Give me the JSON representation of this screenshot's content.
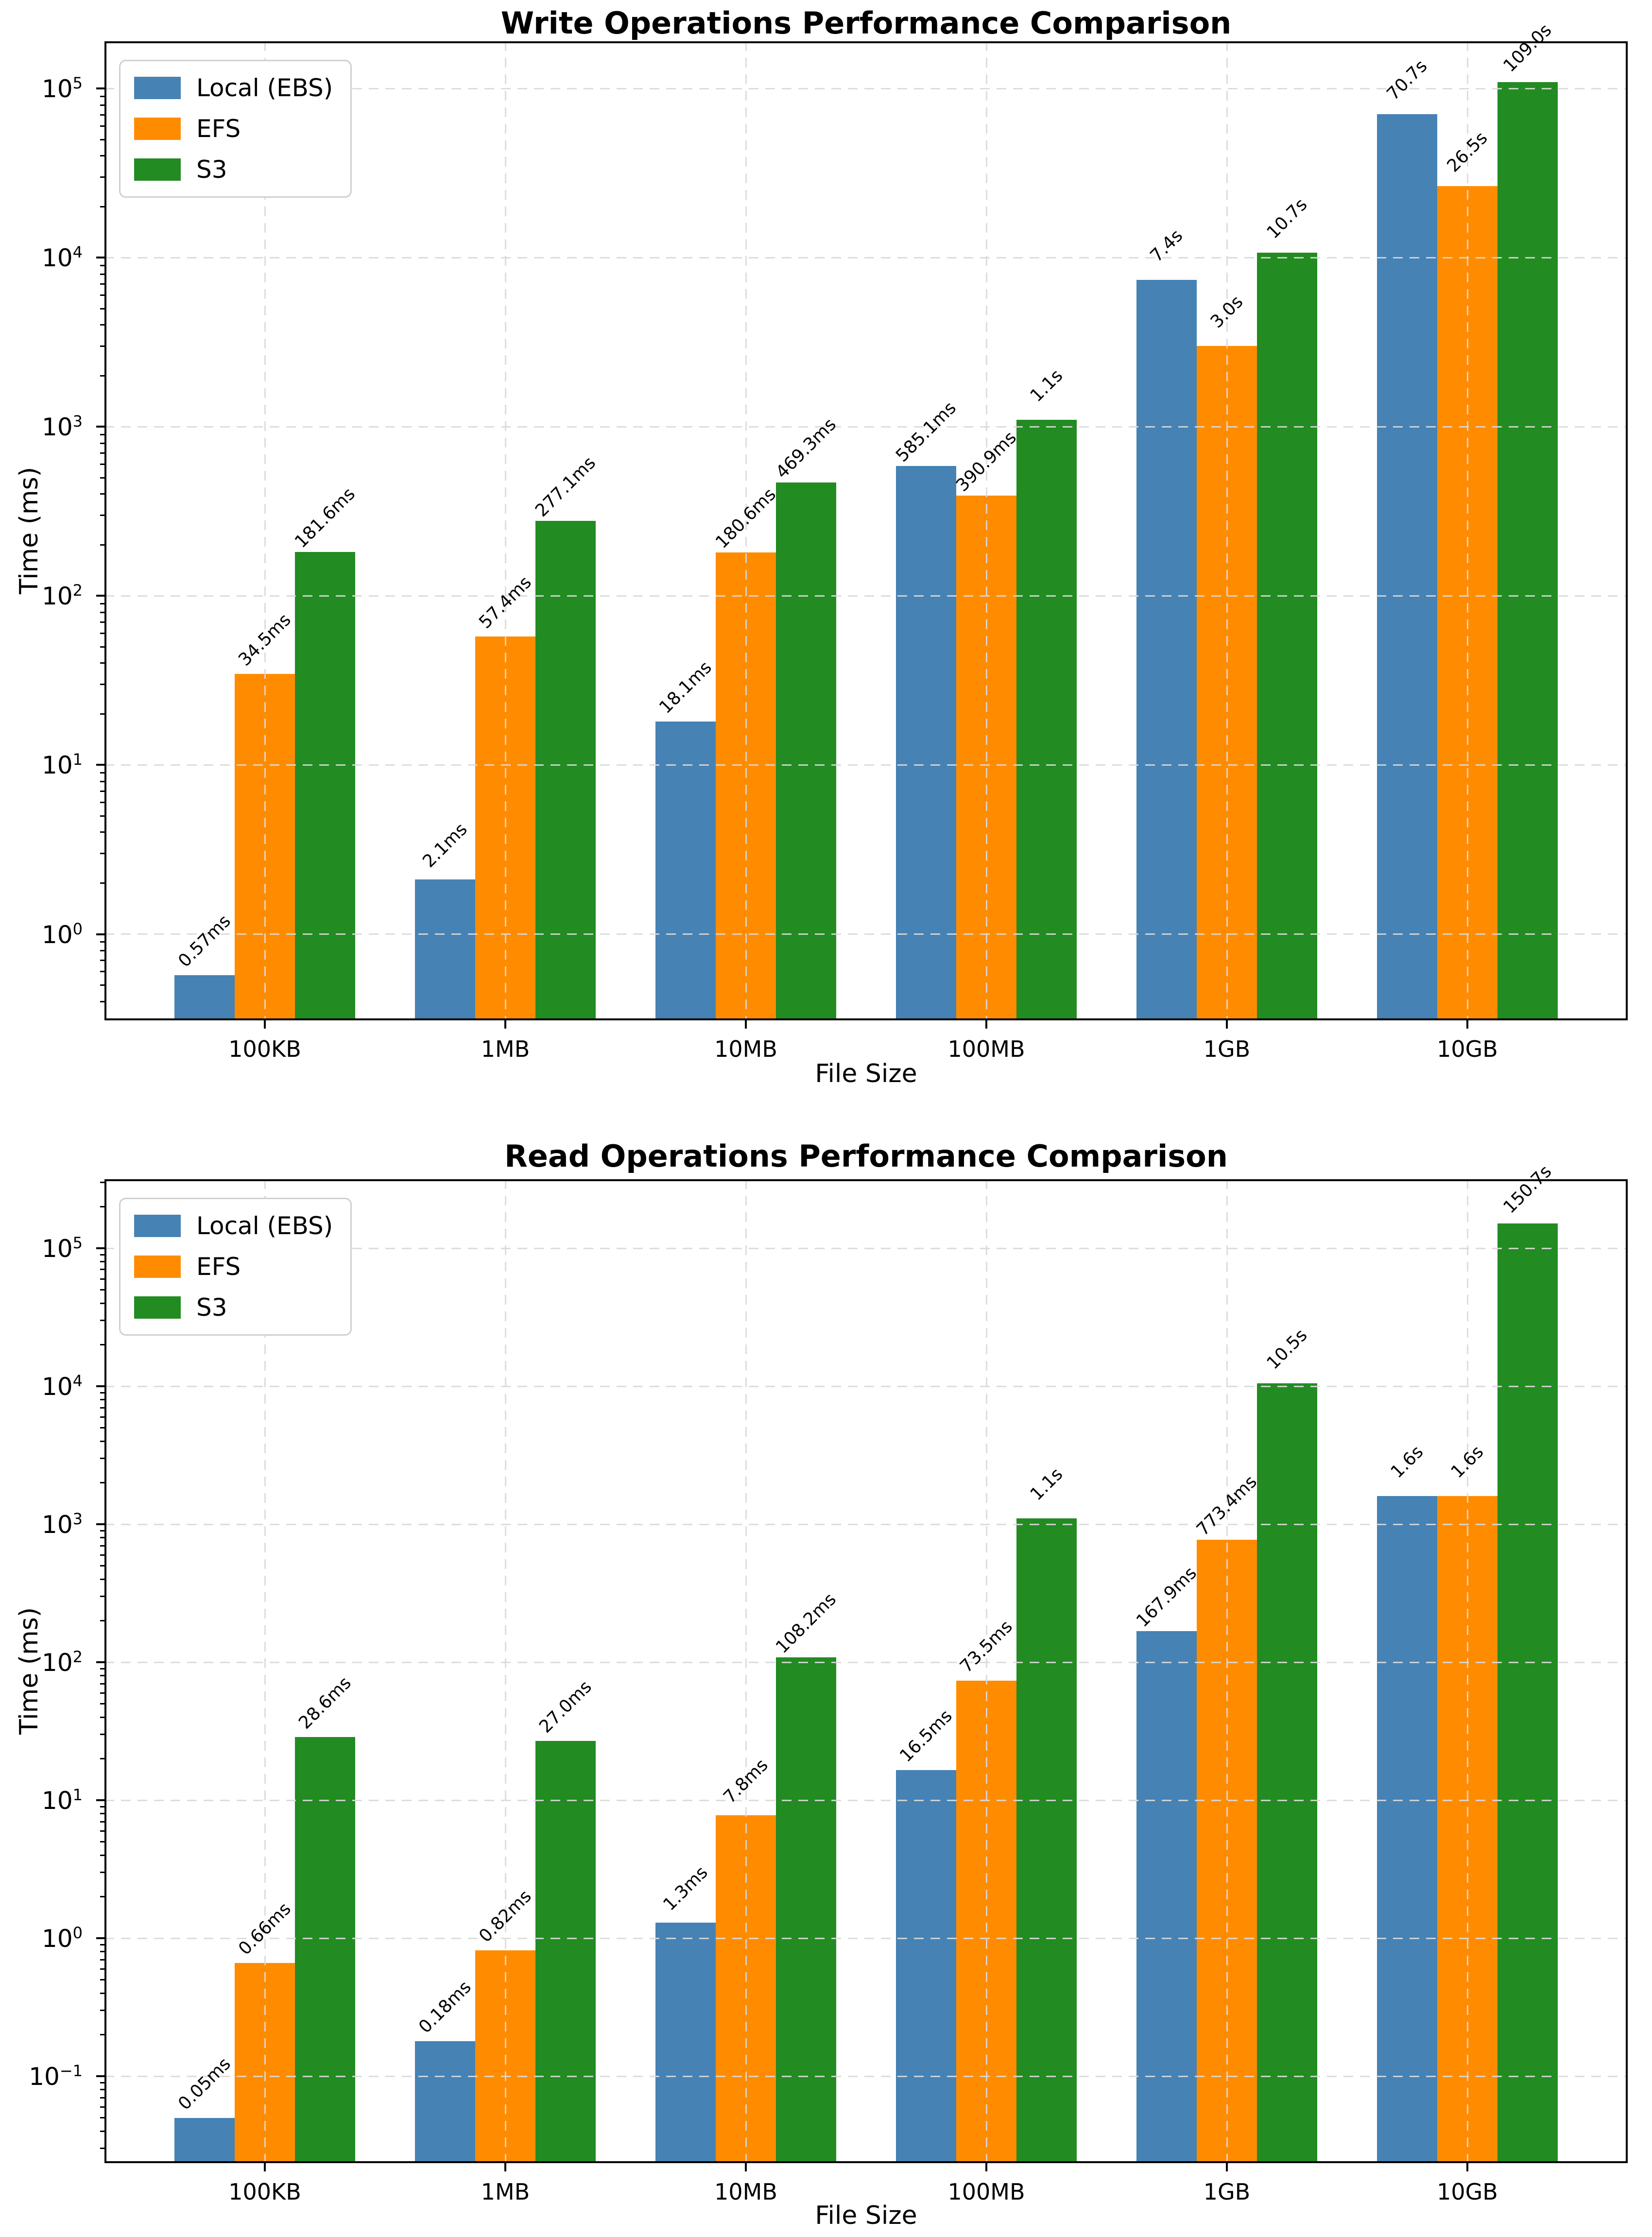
{
  "page": {
    "background": "#ffffff"
  },
  "colors": {
    "local_ebs": "#4682B4",
    "efs": "#FF8C00",
    "s3": "#228B22",
    "grid": "#d9d9d9",
    "axis": "#000000"
  },
  "chart_data": [
    {
      "type": "bar",
      "title": "Write Operations Performance Comparison",
      "xlabel": "File Size",
      "ylabel": "Time (ms)",
      "yscale": "log",
      "grid": true,
      "legend_position": "upper left",
      "categories": [
        "100KB",
        "1MB",
        "10MB",
        "100MB",
        "1GB",
        "10GB"
      ],
      "series": [
        {
          "name": "Local (EBS)",
          "color": "#4682B4",
          "values_ms": [
            0.57,
            2.1,
            18.1,
            585.1,
            7400,
            70700
          ],
          "labels": [
            "0.57ms",
            "2.1ms",
            "18.1ms",
            "585.1ms",
            "7.4s",
            "70.7s"
          ]
        },
        {
          "name": "EFS",
          "color": "#FF8C00",
          "values_ms": [
            34.5,
            57.4,
            180.6,
            390.9,
            3000,
            26500
          ],
          "labels": [
            "34.5ms",
            "57.4ms",
            "180.6ms",
            "390.9ms",
            "3.0s",
            "26.5s"
          ]
        },
        {
          "name": "S3",
          "color": "#228B22",
          "values_ms": [
            181.6,
            277.1,
            469.3,
            1100,
            10700,
            109000
          ],
          "labels": [
            "181.6ms",
            "277.1ms",
            "469.3ms",
            "1.1s",
            "10.7s",
            "109.0s"
          ]
        }
      ],
      "ytick_exponents": [
        0,
        1,
        2,
        3,
        4,
        5
      ],
      "ylog_range": [
        -0.51,
        5.28
      ]
    },
    {
      "type": "bar",
      "title": "Read Operations Performance Comparison",
      "xlabel": "File Size",
      "ylabel": "Time (ms)",
      "yscale": "log",
      "grid": true,
      "legend_position": "upper left",
      "categories": [
        "100KB",
        "1MB",
        "10MB",
        "100MB",
        "1GB",
        "10GB"
      ],
      "series": [
        {
          "name": "Local (EBS)",
          "color": "#4682B4",
          "values_ms": [
            0.05,
            0.18,
            1.3,
            16.5,
            167.9,
            1600
          ],
          "labels": [
            "0.05ms",
            "0.18ms",
            "1.3ms",
            "16.5ms",
            "167.9ms",
            "1.6s"
          ]
        },
        {
          "name": "EFS",
          "color": "#FF8C00",
          "values_ms": [
            0.66,
            0.82,
            7.8,
            73.5,
            773.4,
            1600
          ],
          "labels": [
            "0.66ms",
            "0.82ms",
            "7.8ms",
            "73.5ms",
            "773.4ms",
            "1.6s"
          ]
        },
        {
          "name": "S3",
          "color": "#228B22",
          "values_ms": [
            28.6,
            27.0,
            108.2,
            1100,
            10500,
            150700
          ],
          "labels": [
            "28.6ms",
            "27.0ms",
            "108.2ms",
            "1.1s",
            "10.5s",
            "150.7s"
          ]
        }
      ],
      "ytick_exponents": [
        -1,
        0,
        1,
        2,
        3,
        4,
        5
      ],
      "ylog_range": [
        -1.63,
        5.5
      ]
    }
  ]
}
